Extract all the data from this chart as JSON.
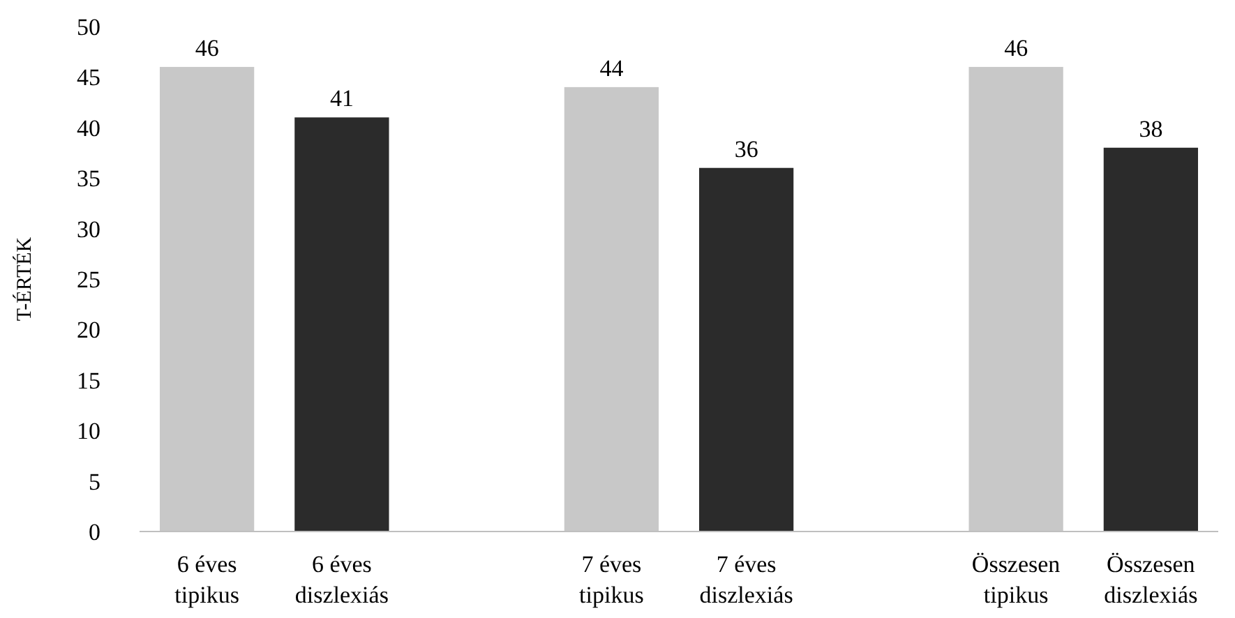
{
  "chart_data": {
    "type": "bar",
    "ylabel": "T-ÉRTÉK",
    "categories": [
      "6 éves tipikus",
      "6 éves diszlexiás",
      null,
      "7 éves tipikus",
      "7 éves diszlexiás",
      null,
      "Összesen tipikus",
      "Összesen diszlexiás"
    ],
    "values": [
      46,
      41,
      null,
      44,
      36,
      null,
      46,
      38
    ],
    "colors": [
      "#c8c8c8",
      "#2b2b2b",
      null,
      "#c8c8c8",
      "#2b2b2b",
      null,
      "#c8c8c8",
      "#2b2b2b"
    ],
    "ylim": [
      0,
      50
    ],
    "yticks": [
      0,
      5,
      10,
      15,
      20,
      25,
      30,
      35,
      40,
      45,
      50
    ],
    "data_labels": true
  }
}
